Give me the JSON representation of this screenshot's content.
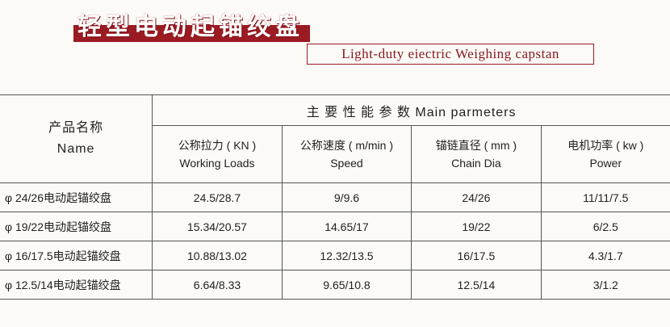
{
  "header": {
    "title_cn": "轻型电动起锚绞盘",
    "title_en": "Light-duty eiectric Weighing capstan",
    "accent": "#9b1b22"
  },
  "table": {
    "name_cn": "产品名称",
    "name_en": "Name",
    "group_header": "主 要 性 能 参 数  Main parmeters",
    "columns": [
      {
        "cn": "公称拉力 ( KN )",
        "en": "Working Loads"
      },
      {
        "cn": "公称速度 ( m/min )",
        "en": "Speed"
      },
      {
        "cn": "锚链直径 ( mm )",
        "en": "Chain Dia"
      },
      {
        "cn": "电机功率 ( kw )",
        "en": "Power"
      }
    ],
    "rows": [
      [
        "φ 24/26电动起锚绞盘",
        "24.5/28.7",
        "9/9.6",
        "24/26",
        "11/11/7.5"
      ],
      [
        "φ 19/22电动起锚绞盘",
        "15.34/20.57",
        "14.65/17",
        "19/22",
        "6/2.5"
      ],
      [
        "φ 16/17.5电动起锚绞盘",
        "10.88/13.02",
        "12.32/13.5",
        "16/17.5",
        "4.3/1.7"
      ],
      [
        "φ 12.5/14电动起锚绞盘",
        "6.64/8.33",
        "9.65/10.8",
        "12.5/14",
        "3/1.2"
      ]
    ]
  }
}
